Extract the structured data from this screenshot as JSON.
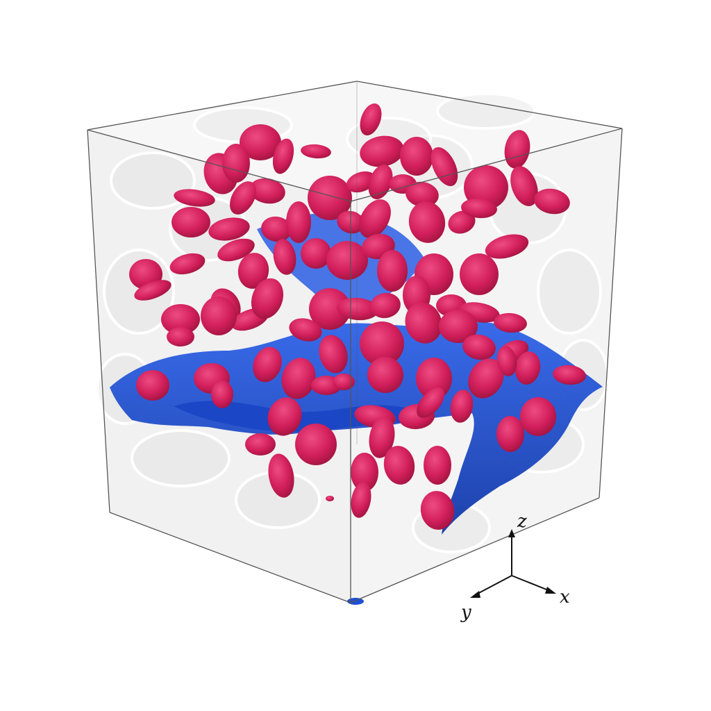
{
  "figure": {
    "colors": {
      "background": "#ffffff",
      "box_fill": "#eeeeee",
      "box_edge": "#555555",
      "particle": "#d21f5c",
      "particle_highlight": "#e8447a",
      "particle_shade": "#a0143f",
      "interface": "#1e4fd6",
      "interface_shade": "#1238a8",
      "axis": "#111111"
    }
  },
  "axes": {
    "z_label": "z",
    "x_label": "x",
    "y_label": "y"
  }
}
